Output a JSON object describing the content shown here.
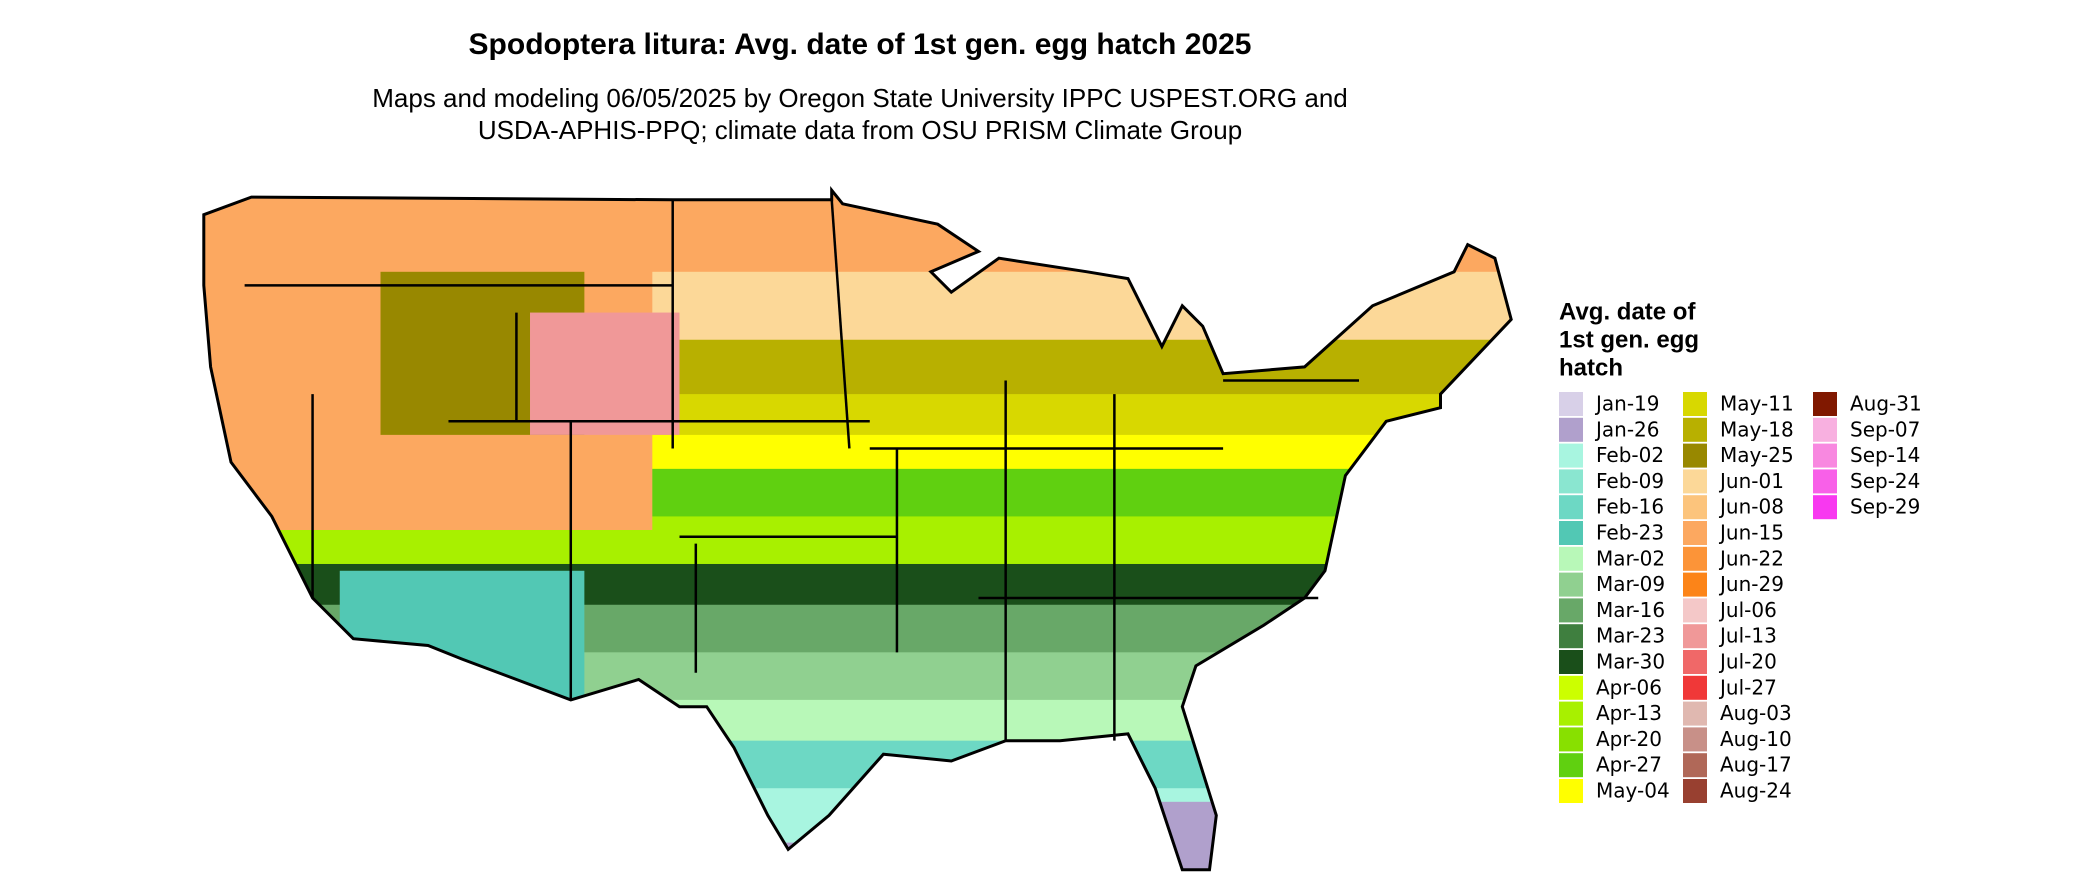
{
  "title": "Spodoptera litura: Avg. date of 1st gen. egg hatch 2025",
  "subtitle": [
    "Maps and modeling 06/05/2025 by Oregon State University IPPC USPEST.ORG and",
    "USDA-APHIS-PPQ; climate data from OSU PRISM Climate Group"
  ],
  "legend": {
    "title": [
      "Avg. date of",
      "1st gen. egg",
      "hatch"
    ],
    "items": [
      {
        "label": "Jan-19",
        "color": "#d8d0e8"
      },
      {
        "label": "Jan-26",
        "color": "#b0a0cc"
      },
      {
        "label": "Feb-02",
        "color": "#a8f5e0"
      },
      {
        "label": "Feb-09",
        "color": "#8ae6d0"
      },
      {
        "label": "Feb-16",
        "color": "#6dd8c4"
      },
      {
        "label": "Feb-23",
        "color": "#52c8b4"
      },
      {
        "label": "Mar-02",
        "color": "#b8f8b8"
      },
      {
        "label": "Mar-09",
        "color": "#90d090"
      },
      {
        "label": "Mar-16",
        "color": "#68a868"
      },
      {
        "label": "Mar-23",
        "color": "#3f7f3f"
      },
      {
        "label": "Mar-30",
        "color": "#1a4f1a"
      },
      {
        "label": "Apr-06",
        "color": "#ccff00"
      },
      {
        "label": "Apr-13",
        "color": "#a8f000"
      },
      {
        "label": "Apr-20",
        "color": "#88e000"
      },
      {
        "label": "Apr-27",
        "color": "#60d010"
      },
      {
        "label": "May-04",
        "color": "#ffff00"
      },
      {
        "label": "May-11",
        "color": "#d8d800"
      },
      {
        "label": "May-18",
        "color": "#b8b000"
      },
      {
        "label": "May-25",
        "color": "#988800"
      },
      {
        "label": "Jun-01",
        "color": "#fcd898"
      },
      {
        "label": "Jun-08",
        "color": "#fcc47c"
      },
      {
        "label": "Jun-15",
        "color": "#fca860"
      },
      {
        "label": "Jun-22",
        "color": "#fc9438"
      },
      {
        "label": "Jun-29",
        "color": "#fc8418"
      },
      {
        "label": "Jul-06",
        "color": "#f4c8c8"
      },
      {
        "label": "Jul-13",
        "color": "#f09898"
      },
      {
        "label": "Jul-20",
        "color": "#f06868"
      },
      {
        "label": "Jul-27",
        "color": "#f03838"
      },
      {
        "label": "Aug-03",
        "color": "#e0b8b0"
      },
      {
        "label": "Aug-10",
        "color": "#c89088"
      },
      {
        "label": "Aug-17",
        "color": "#b06858"
      },
      {
        "label": "Aug-24",
        "color": "#984030"
      },
      {
        "label": "Aug-31",
        "color": "#801800"
      },
      {
        "label": "Sep-07",
        "color": "#f8b0e0"
      },
      {
        "label": "Sep-14",
        "color": "#f888e0"
      },
      {
        "label": "Sep-24",
        "color": "#f860e8"
      },
      {
        "label": "Sep-29",
        "color": "#f838f0"
      }
    ]
  }
}
